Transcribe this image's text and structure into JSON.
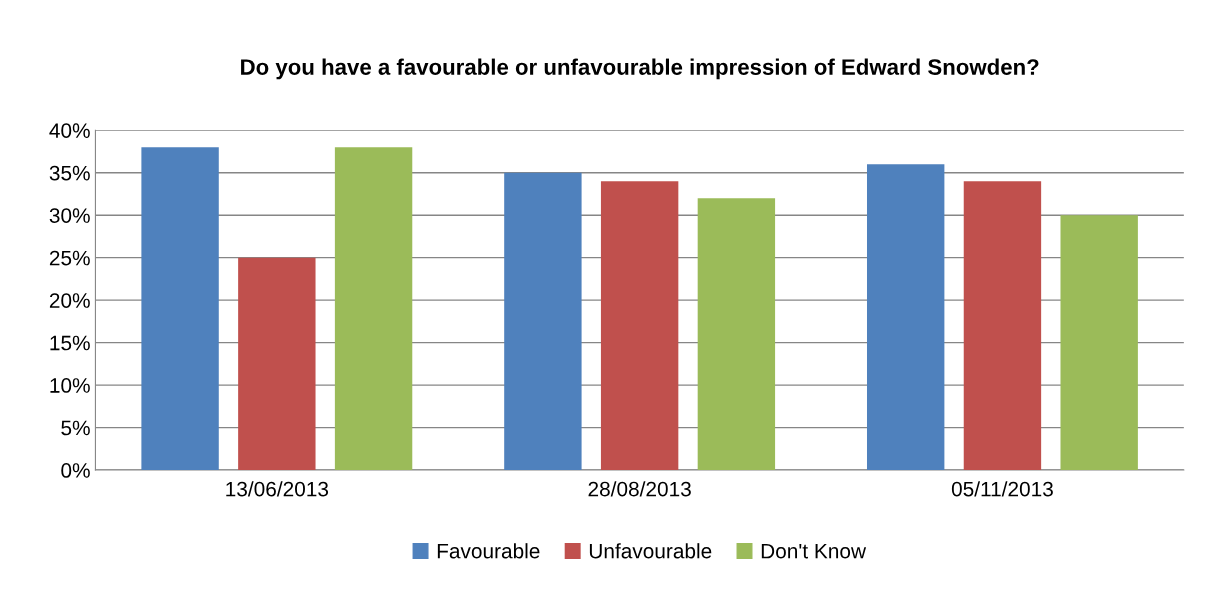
{
  "chart_data": {
    "type": "bar",
    "title": "Do you have a favourable or unfavourable impression of Edward Snowden?",
    "categories": [
      "13/06/2013",
      "28/08/2013",
      "05/11/2013"
    ],
    "series": [
      {
        "name": "Favourable",
        "color": "#4f81bd",
        "values": [
          38,
          35,
          36
        ]
      },
      {
        "name": "Unfavourable",
        "color": "#c0504d",
        "values": [
          25,
          34,
          34
        ]
      },
      {
        "name": "Don't Know",
        "color": "#9bbb59",
        "values": [
          38,
          32,
          30
        ]
      }
    ],
    "ylim": [
      0,
      40
    ],
    "yticks": [
      {
        "value": 0,
        "label": "0%"
      },
      {
        "value": 5,
        "label": "5%"
      },
      {
        "value": 10,
        "label": "10%"
      },
      {
        "value": 15,
        "label": "15%"
      },
      {
        "value": 20,
        "label": "20%"
      },
      {
        "value": 25,
        "label": "25%"
      },
      {
        "value": 30,
        "label": "30%"
      },
      {
        "value": 35,
        "label": "35%"
      },
      {
        "value": 40,
        "label": "40%"
      }
    ],
    "grid": "y",
    "legend": "bottom"
  }
}
